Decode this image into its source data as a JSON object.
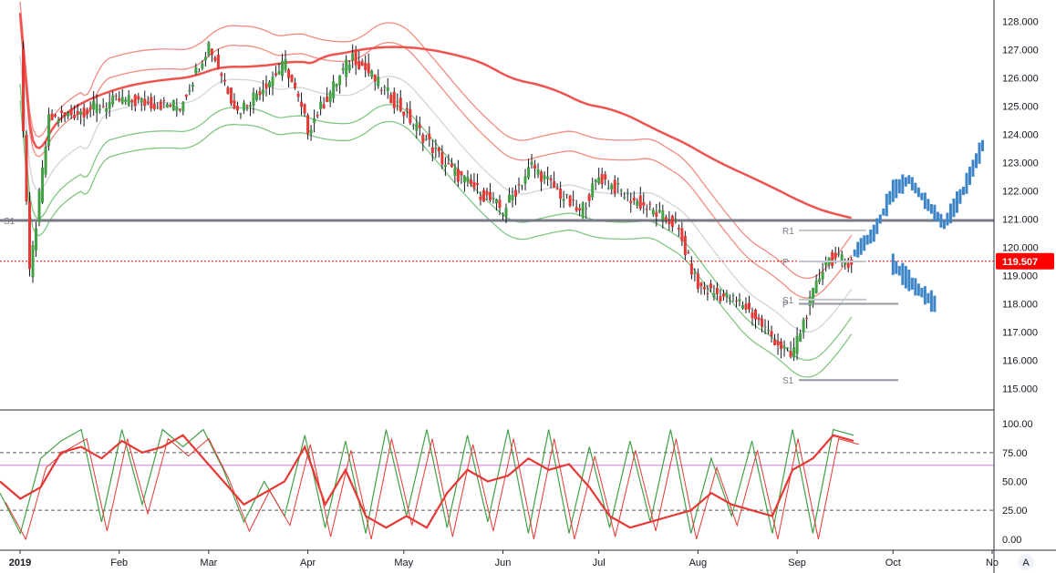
{
  "chart_data": [
    {
      "type": "candlestick",
      "ylim": [
        114.5,
        128.5
      ],
      "y_ticks": [
        "128.000",
        "127.000",
        "126.000",
        "125.000",
        "124.000",
        "123.000",
        "122.000",
        "121.000",
        "120.000",
        "119.000",
        "118.000",
        "117.000",
        "116.000",
        "115.000"
      ],
      "x_ticks": [
        "2019",
        "Feb",
        "Mar",
        "Apr",
        "May",
        "Jun",
        "Jul",
        "Aug",
        "Sep",
        "Oct",
        "No"
      ],
      "last_price": "119.507",
      "colors": {
        "up": "#43a047",
        "down": "#e53935",
        "sma": "#ef5350",
        "bands_upper": "#f28b82",
        "bands_lower": "#81c784",
        "mid": "#d1d4dc",
        "projection": "#3d85c6",
        "hline": "#787b86",
        "price_line": "#ff0000"
      },
      "horizontal_lines": [
        {
          "label": "S1",
          "value": 120.95
        }
      ],
      "pivot_labels": [
        {
          "label": "R1",
          "value": 120.6
        },
        {
          "label": "P",
          "value": 119.5
        },
        {
          "label": "P",
          "value": 118.0
        },
        {
          "label": "S1",
          "value": 118.15
        },
        {
          "label": "S1",
          "value": 115.3
        }
      ],
      "candles_anchor_points": [
        {
          "date": "2019-01-01",
          "close": 126.8
        },
        {
          "date": "2019-01-04",
          "close": 119.0
        },
        {
          "date": "2019-01-10",
          "close": 124.5
        },
        {
          "date": "2019-02-01",
          "close": 125.2
        },
        {
          "date": "2019-02-20",
          "close": 125.0
        },
        {
          "date": "2019-03-01",
          "close": 127.2
        },
        {
          "date": "2019-03-10",
          "close": 124.8
        },
        {
          "date": "2019-03-25",
          "close": 126.5
        },
        {
          "date": "2019-04-01",
          "close": 124.2
        },
        {
          "date": "2019-04-15",
          "close": 126.8
        },
        {
          "date": "2019-05-01",
          "close": 124.8
        },
        {
          "date": "2019-05-15",
          "close": 122.8
        },
        {
          "date": "2019-06-01",
          "close": 121.3
        },
        {
          "date": "2019-06-10",
          "close": 122.9
        },
        {
          "date": "2019-06-25",
          "close": 121.2
        },
        {
          "date": "2019-07-01",
          "close": 122.5
        },
        {
          "date": "2019-07-10",
          "close": 121.8
        },
        {
          "date": "2019-07-25",
          "close": 120.8
        },
        {
          "date": "2019-08-01",
          "close": 118.6
        },
        {
          "date": "2019-08-15",
          "close": 118.0
        },
        {
          "date": "2019-08-30",
          "close": 116.1
        },
        {
          "date": "2019-09-10",
          "close": 119.6
        },
        {
          "date": "2019-09-18",
          "close": 119.5
        }
      ],
      "projection_anchor_points": [
        {
          "date": "2019-09-19",
          "close": 119.8
        },
        {
          "date": "2019-09-25",
          "close": 120.5
        },
        {
          "date": "2019-10-01",
          "close": 122.0
        },
        {
          "date": "2019-10-06",
          "close": 122.4
        },
        {
          "date": "2019-10-12",
          "close": 121.5
        },
        {
          "date": "2019-10-17",
          "close": 120.8
        },
        {
          "date": "2019-10-23",
          "close": 122.0
        },
        {
          "date": "2019-10-29",
          "close": 123.6
        }
      ],
      "projection_anchor_points_alt": [
        {
          "date": "2019-10-01",
          "close": 119.4
        },
        {
          "date": "2019-10-08",
          "close": 118.6
        },
        {
          "date": "2019-10-14",
          "close": 118.0
        }
      ]
    },
    {
      "type": "line",
      "ylim": [
        -8,
        108
      ],
      "y_ticks": [
        "100.00",
        "75.00",
        "50.00",
        "25.00",
        "0.00"
      ],
      "levels": [
        75,
        25,
        64
      ],
      "series": [
        {
          "values": [
            40,
            5,
            70,
            85,
            95,
            15,
            95,
            30,
            95,
            80,
            95,
            60,
            15,
            50,
            20,
            90,
            10,
            85,
            5,
            95,
            20,
            95,
            10,
            90,
            15,
            95,
            5,
            95,
            5,
            80,
            10,
            85,
            15,
            95,
            5,
            70,
            20,
            85,
            5,
            95,
            5,
            95,
            90
          ]
        },
        {
          "values": [
            50,
            35,
            45,
            75,
            80,
            70,
            85,
            75,
            80,
            90,
            70,
            50,
            30,
            40,
            50,
            80,
            30,
            60,
            20,
            10,
            20,
            10,
            40,
            60,
            50,
            55,
            70,
            60,
            65,
            45,
            20,
            10,
            15,
            20,
            25,
            40,
            30,
            25,
            20,
            60,
            70,
            90,
            85
          ]
        }
      ]
    }
  ],
  "footer_symbol": "A"
}
